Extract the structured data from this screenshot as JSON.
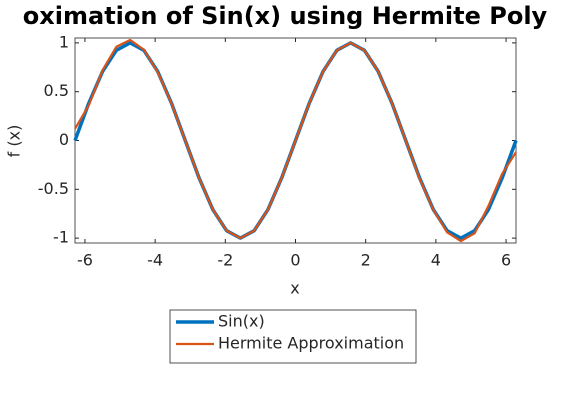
{
  "chart_data": {
    "type": "line",
    "title": "oximation of Sin(x) using Hermite Poly",
    "x_label": "x",
    "y_label": "f (x)",
    "x": [
      -6.2832,
      -5.8905,
      -5.4978,
      -5.1051,
      -4.7124,
      -4.3197,
      -3.927,
      -3.5343,
      -3.1416,
      -2.7489,
      -2.3562,
      -1.9635,
      -1.5708,
      -1.1781,
      -0.7854,
      -0.3927,
      0,
      0.3927,
      0.7854,
      1.1781,
      1.5708,
      1.9635,
      2.3562,
      2.7489,
      3.1416,
      3.5343,
      3.927,
      4.3197,
      4.7124,
      5.1051,
      5.4978,
      5.8905,
      6.2832
    ],
    "series": [
      {
        "name": "Sin(x)",
        "color": "#0072BD",
        "values": [
          0,
          0.3827,
          0.7071,
          0.9239,
          1,
          0.9239,
          0.7071,
          0.3827,
          0,
          -0.3827,
          -0.7071,
          -0.9239,
          -1,
          -0.9239,
          -0.7071,
          -0.3827,
          0,
          0.3827,
          0.7071,
          0.9239,
          1,
          0.9239,
          0.7071,
          0.3827,
          0,
          -0.3827,
          -0.7071,
          -0.9239,
          -1,
          -0.9239,
          -0.7071,
          -0.3827,
          0
        ]
      },
      {
        "name": "Hermite Approximation",
        "color": "#D95319",
        "values": [
          0.12,
          0.36,
          0.72,
          0.96,
          1.03,
          0.93,
          0.7,
          0.38,
          0,
          -0.3827,
          -0.7071,
          -0.9239,
          -1,
          -0.9239,
          -0.7071,
          -0.3827,
          0,
          0.3827,
          0.7071,
          0.9239,
          1,
          0.9239,
          0.7071,
          0.3827,
          0,
          -0.39,
          -0.71,
          -0.94,
          -1.03,
          -0.95,
          -0.67,
          -0.34,
          -0.12
        ]
      }
    ],
    "xlim": [
      -6.2832,
      6.2832
    ],
    "ylim": [
      -1.05,
      1.05
    ],
    "xticks": [
      -6,
      -4,
      -2,
      0,
      2,
      4,
      6
    ],
    "yticks": [
      -1,
      -0.5,
      0,
      0.5,
      1
    ],
    "legend": "bottom"
  }
}
